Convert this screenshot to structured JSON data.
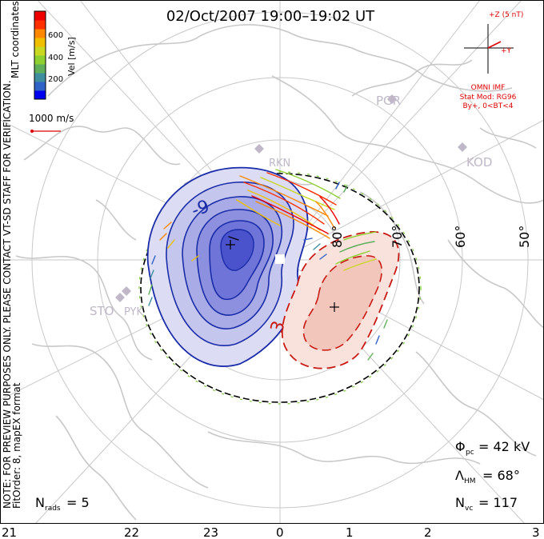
{
  "title": "02/Oct/2007  19:00–19:02 UT",
  "side_note": "NOTE: FOR PREVIEW PURPOSES ONLY. PLEASE CONTACT VT-SD STAFF FOR VERIFICATION.",
  "fit_note": "FitOrder: 8, mapEX format",
  "mlt_label": "MLT coordinates",
  "colorbar": {
    "label": "Vel [m/s]",
    "ticks": [
      "600",
      "400",
      "200"
    ],
    "colors": [
      "#0000ee",
      "#2f63c8",
      "#3f8ea0",
      "#5fae5a",
      "#8ed030",
      "#c9d820",
      "#f0c000",
      "#ff8800",
      "#ff3000",
      "#ee0000"
    ]
  },
  "vector_scale": "1000 m/s",
  "imf": {
    "z_label": "+Z (5 nT)",
    "y_label": "+Y",
    "source": "OMNI IMF",
    "model": "Stat Mod: RG96",
    "condition": "By+, 0<BT<4",
    "color": "#dd0000"
  },
  "stations": [
    "PGR",
    "KOD",
    "RKN",
    "STO",
    "PYK"
  ],
  "lat_labels": [
    "80°",
    "70°",
    "60°",
    "50°"
  ],
  "contour_labels": {
    "neg": "-9",
    "pos": "3"
  },
  "stats": {
    "phi_symbol": "Φ",
    "phi_sub": "pc",
    "phi_value": "= 42 kV",
    "lambda_symbol": "Λ",
    "lambda_sub": "HM",
    "lambda_value": "= 68°",
    "nvc_symbol": "N",
    "nvc_sub": "vc",
    "nvc_value": "= 117"
  },
  "nrads": {
    "symbol": "N",
    "sub": "rads",
    "value": "= 5"
  },
  "mlt_axis": [
    "21",
    "22",
    "23",
    "0",
    "1",
    "2",
    "3"
  ],
  "colors": {
    "neg_cell": "#6f74d8",
    "neg_line": "#1a2ca8",
    "pos_cell": "#f2c8c0",
    "pos_line": "#c81a12",
    "grid": "#c8c8c8",
    "coast": "#c8c8c8"
  }
}
